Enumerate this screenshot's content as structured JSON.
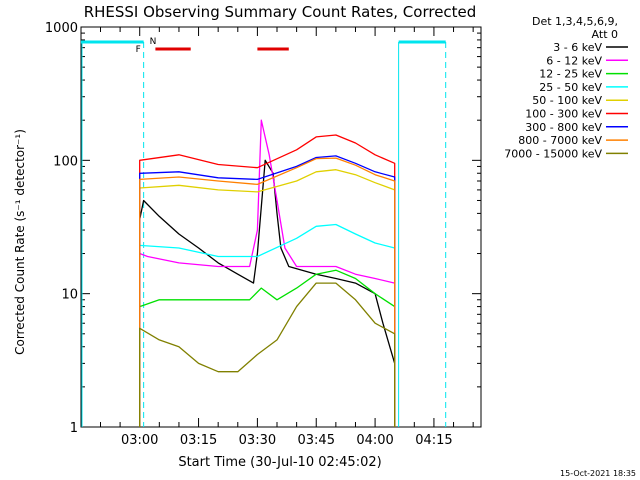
{
  "chart_data": {
    "type": "line",
    "title": "RHESSI Observing Summary Count Rates, Corrected",
    "xlabel": "Start Time (30-Jul-10 02:45:02)",
    "ylabel": "Corrected Count Rate (s⁻¹ detector⁻¹)",
    "y_scale": "log",
    "ylim": [
      1,
      1000
    ],
    "y_ticks": [
      {
        "value": 1,
        "label": "1"
      },
      {
        "value": 10,
        "label": "10"
      },
      {
        "value": 100,
        "label": "100"
      },
      {
        "value": 1000,
        "label": "1000"
      }
    ],
    "x_ticks": [
      "03:00",
      "03:15",
      "03:30",
      "03:45",
      "04:00",
      "04:15"
    ],
    "info_header": [
      "Det 1,3,4,5,6,9,",
      "Att 0"
    ],
    "footer_date": "15-Oct-2021 18:35",
    "markers": {
      "flare_label": "F",
      "night_label": "N"
    },
    "colors": {
      "night": "#00e5ee",
      "flare": "#e00000"
    },
    "series": [
      {
        "name": "3 - 6 keV",
        "color": "#000000",
        "points": [
          [
            "03:00",
            36
          ],
          [
            "03:01",
            50
          ],
          [
            "03:05",
            38
          ],
          [
            "03:10",
            28
          ],
          [
            "03:15",
            22
          ],
          [
            "03:20",
            17
          ],
          [
            "03:25",
            14
          ],
          [
            "03:29",
            12
          ],
          [
            "03:30",
            20
          ],
          [
            "03:32",
            100
          ],
          [
            "03:34",
            80
          ],
          [
            "03:35",
            40
          ],
          [
            "03:36",
            22
          ],
          [
            "03:38",
            16
          ],
          [
            "03:45",
            14
          ],
          [
            "03:50",
            13
          ],
          [
            "03:55",
            12
          ],
          [
            "04:00",
            10
          ],
          [
            "04:02",
            6
          ],
          [
            "04:05",
            3
          ]
        ]
      },
      {
        "name": "6 - 12 keV",
        "color": "#ff00ff",
        "points": [
          [
            "03:00",
            20
          ],
          [
            "03:02",
            19
          ],
          [
            "03:10",
            17
          ],
          [
            "03:20",
            16
          ],
          [
            "03:28",
            16
          ],
          [
            "03:30",
            30
          ],
          [
            "03:31",
            200
          ],
          [
            "03:33",
            110
          ],
          [
            "03:35",
            50
          ],
          [
            "03:37",
            22
          ],
          [
            "03:40",
            16
          ],
          [
            "03:45",
            16
          ],
          [
            "03:50",
            16
          ],
          [
            "03:55",
            14
          ],
          [
            "04:00",
            13
          ],
          [
            "04:05",
            12
          ]
        ]
      },
      {
        "name": "12 - 25 keV",
        "color": "#00e000",
        "points": [
          [
            "03:00",
            8
          ],
          [
            "03:05",
            9
          ],
          [
            "03:10",
            9
          ],
          [
            "03:20",
            9
          ],
          [
            "03:28",
            9
          ],
          [
            "03:31",
            11
          ],
          [
            "03:35",
            9
          ],
          [
            "03:40",
            11
          ],
          [
            "03:45",
            14
          ],
          [
            "03:50",
            15
          ],
          [
            "03:55",
            13
          ],
          [
            "04:00",
            10
          ],
          [
            "04:05",
            8
          ]
        ]
      },
      {
        "name": "25 - 50 keV",
        "color": "#00ffff",
        "points": [
          [
            "03:00",
            23
          ],
          [
            "03:10",
            22
          ],
          [
            "03:20",
            19
          ],
          [
            "03:30",
            19
          ],
          [
            "03:40",
            26
          ],
          [
            "03:45",
            32
          ],
          [
            "03:50",
            33
          ],
          [
            "03:55",
            28
          ],
          [
            "04:00",
            24
          ],
          [
            "04:05",
            22
          ]
        ]
      },
      {
        "name": "50 - 100 keV",
        "color": "#e0d000",
        "points": [
          [
            "03:00",
            62
          ],
          [
            "03:10",
            65
          ],
          [
            "03:20",
            60
          ],
          [
            "03:30",
            58
          ],
          [
            "03:40",
            70
          ],
          [
            "03:45",
            82
          ],
          [
            "03:50",
            85
          ],
          [
            "03:55",
            78
          ],
          [
            "04:00",
            68
          ],
          [
            "04:05",
            60
          ]
        ]
      },
      {
        "name": "100 - 300 keV",
        "color": "#ff0000",
        "points": [
          [
            "03:00",
            100
          ],
          [
            "03:10",
            110
          ],
          [
            "03:20",
            93
          ],
          [
            "03:30",
            88
          ],
          [
            "03:40",
            120
          ],
          [
            "03:45",
            150
          ],
          [
            "03:50",
            155
          ],
          [
            "03:55",
            135
          ],
          [
            "04:00",
            110
          ],
          [
            "04:05",
            95
          ]
        ]
      },
      {
        "name": "300 - 800 keV",
        "color": "#0000ff",
        "points": [
          [
            "03:00",
            80
          ],
          [
            "03:10",
            82
          ],
          [
            "03:20",
            74
          ],
          [
            "03:30",
            72
          ],
          [
            "03:40",
            90
          ],
          [
            "03:45",
            105
          ],
          [
            "03:50",
            108
          ],
          [
            "03:55",
            95
          ],
          [
            "04:00",
            82
          ],
          [
            "04:05",
            75
          ]
        ]
      },
      {
        "name": "800 - 7000 keV",
        "color": "#ff8000",
        "points": [
          [
            "03:00",
            72
          ],
          [
            "03:10",
            75
          ],
          [
            "03:20",
            70
          ],
          [
            "03:30",
            66
          ],
          [
            "03:40",
            88
          ],
          [
            "03:45",
            103
          ],
          [
            "03:50",
            104
          ],
          [
            "03:55",
            92
          ],
          [
            "04:00",
            78
          ],
          [
            "04:05",
            70
          ]
        ]
      },
      {
        "name": "7000 - 15000 keV",
        "color": "#808000",
        "points": [
          [
            "03:00",
            5.5
          ],
          [
            "03:05",
            4.5
          ],
          [
            "03:10",
            4
          ],
          [
            "03:15",
            3
          ],
          [
            "03:20",
            2.6
          ],
          [
            "03:25",
            2.6
          ],
          [
            "03:30",
            3.5
          ],
          [
            "03:35",
            4.5
          ],
          [
            "03:40",
            8
          ],
          [
            "03:45",
            12
          ],
          [
            "03:50",
            12
          ],
          [
            "03:55",
            9
          ],
          [
            "04:00",
            6
          ],
          [
            "04:05",
            5
          ]
        ]
      }
    ],
    "night_intervals": [
      [
        "02:45",
        "03:01"
      ],
      [
        "04:06",
        "04:18"
      ]
    ],
    "flare_intervals": [
      [
        "03:04",
        "03:13"
      ],
      [
        "03:30",
        "03:38"
      ]
    ],
    "dashed_lines": [
      "03:01",
      "04:18"
    ]
  }
}
